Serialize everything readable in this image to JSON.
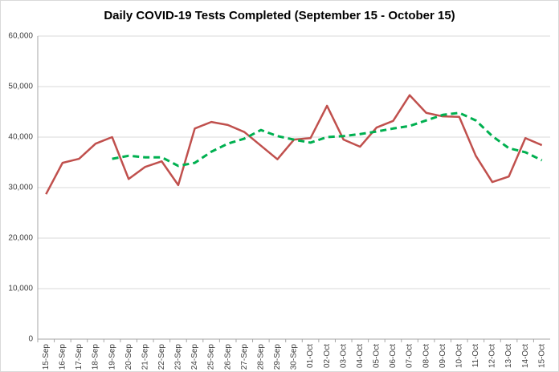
{
  "chart_data": {
    "type": "line",
    "title": "Daily COVID-19 Tests Completed (September 15 - October 15)",
    "categories": [
      "15-Sep",
      "16-Sep",
      "17-Sep",
      "18-Sep",
      "19-Sep",
      "20-Sep",
      "21-Sep",
      "22-Sep",
      "23-Sep",
      "24-Sep",
      "25-Sep",
      "26-Sep",
      "27-Sep",
      "28-Sep",
      "29-Sep",
      "30-Sep",
      "01-Oct",
      "02-Oct",
      "03-Oct",
      "04-Oct",
      "05-Oct",
      "06-Oct",
      "07-Oct",
      "08-Oct",
      "09-Oct",
      "10-Oct",
      "11-Oct",
      "12-Oct",
      "13-Oct",
      "14-Oct",
      "15-Oct"
    ],
    "series": [
      {
        "color": "#c0504d",
        "dashed": false,
        "values": [
          28700,
          34900,
          35700,
          38700,
          40000,
          31700,
          34100,
          35200,
          30500,
          41700,
          43000,
          42400,
          41000,
          38300,
          35600,
          39500,
          39800,
          46200,
          39500,
          38100,
          41900,
          43200,
          48300,
          44800,
          44100,
          44000,
          36300,
          31100,
          32200,
          39800,
          38400
        ]
      },
      {
        "color": "#00b050",
        "dashed": true,
        "values": [
          null,
          null,
          null,
          null,
          35700,
          36300,
          36000,
          36000,
          34300,
          34900,
          37100,
          38700,
          39700,
          41400,
          40200,
          39500,
          38900,
          40000,
          40200,
          40600,
          41100,
          41700,
          42200,
          43300,
          44400,
          44800,
          43300,
          40200,
          37800,
          37000,
          35400
        ]
      }
    ],
    "ylim": [
      0,
      60000
    ],
    "yticks": [
      0,
      {
        "value": 10000,
        "label": "10,000"
      },
      {
        "value": 20000,
        "label": "20,000"
      },
      {
        "value": 30000,
        "label": "30,000"
      },
      {
        "value": 40000,
        "label": "40,000"
      },
      {
        "value": 50000,
        "label": "50,000"
      },
      {
        "value": 60000,
        "label": "60,000"
      }
    ],
    "grid": true
  }
}
